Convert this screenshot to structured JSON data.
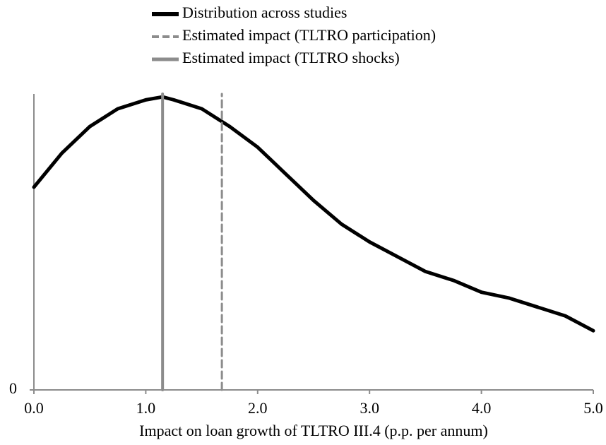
{
  "chart_data": {
    "type": "line",
    "xlabel": "Impact on loan growth of TLTRO III.4  (p.p. per annum)",
    "series": [
      {
        "name": "Distribution across studies",
        "color": "#000000",
        "dash": false,
        "width": 5,
        "x": [
          0,
          0.25,
          0.5,
          0.75,
          1.0,
          1.15,
          1.25,
          1.5,
          1.75,
          2.0,
          2.25,
          2.5,
          2.75,
          3.0,
          3.25,
          3.5,
          3.75,
          4.0,
          4.25,
          4.5,
          4.75,
          5.0
        ],
        "values": [
          0.685,
          0.8,
          0.89,
          0.95,
          0.98,
          0.99,
          0.98,
          0.95,
          0.89,
          0.82,
          0.73,
          0.64,
          0.56,
          0.5,
          0.45,
          0.4,
          0.37,
          0.33,
          0.31,
          0.28,
          0.25,
          0.2
        ]
      },
      {
        "name": "Estimated impact (TLTRO participation)",
        "color": "#8c8c8c",
        "dash": true,
        "width": 3,
        "x": [
          1.68,
          1.68
        ],
        "values": [
          0,
          1
        ]
      },
      {
        "name": "Estimated impact (TLTRO shocks)",
        "color": "#8c8c8c",
        "dash": false,
        "width": 4,
        "x": [
          1.15,
          1.15
        ],
        "values": [
          0,
          1
        ]
      }
    ],
    "xlim": [
      0,
      5
    ],
    "xticks": [
      {
        "value": 0,
        "label": "0.0"
      },
      {
        "value": 1,
        "label": "1.0"
      },
      {
        "value": 2,
        "label": "2.0"
      },
      {
        "value": 3,
        "label": "3.0"
      },
      {
        "value": 4,
        "label": "4.0"
      },
      {
        "value": 5,
        "label": "5.0"
      }
    ],
    "ylim": [
      0,
      1
    ],
    "yticks": [
      0
    ],
    "legend": "top"
  }
}
